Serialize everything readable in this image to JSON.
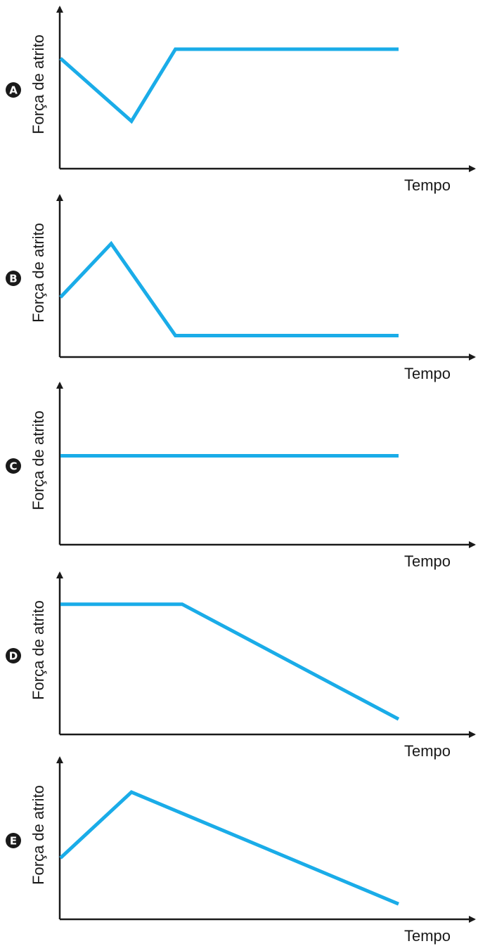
{
  "colors": {
    "line": "#1aace8",
    "axis": "#1a1a1a",
    "badge": "#1a1a1a",
    "badge_text": "#ffffff"
  },
  "chart_data": [
    {
      "type": "line",
      "label": "A",
      "xlabel": "Tempo",
      "ylabel": "Força de atrito",
      "grid": false,
      "x": [
        0,
        2.1,
        3.4,
        10
      ],
      "y": [
        7.2,
        3.1,
        7.8,
        7.8
      ]
    },
    {
      "type": "line",
      "label": "B",
      "xlabel": "Tempo",
      "ylabel": "Força de atrito",
      "grid": false,
      "x": [
        0,
        1.5,
        3.4,
        10
      ],
      "y": [
        3.9,
        7.4,
        1.4,
        1.4
      ]
    },
    {
      "type": "line",
      "label": "C",
      "xlabel": "Tempo",
      "ylabel": "Força de atrito",
      "grid": false,
      "x": [
        0,
        10
      ],
      "y": [
        5.8,
        5.8
      ]
    },
    {
      "type": "line",
      "label": "D",
      "xlabel": "Tempo",
      "ylabel": "Força de atrito",
      "grid": false,
      "x": [
        0,
        3.6,
        10
      ],
      "y": [
        8.5,
        8.5,
        1.0
      ]
    },
    {
      "type": "line",
      "label": "E",
      "xlabel": "Tempo",
      "ylabel": "Força de atrito",
      "grid": false,
      "x": [
        0,
        2.1,
        10
      ],
      "y": [
        4.0,
        8.3,
        1.0
      ]
    }
  ]
}
